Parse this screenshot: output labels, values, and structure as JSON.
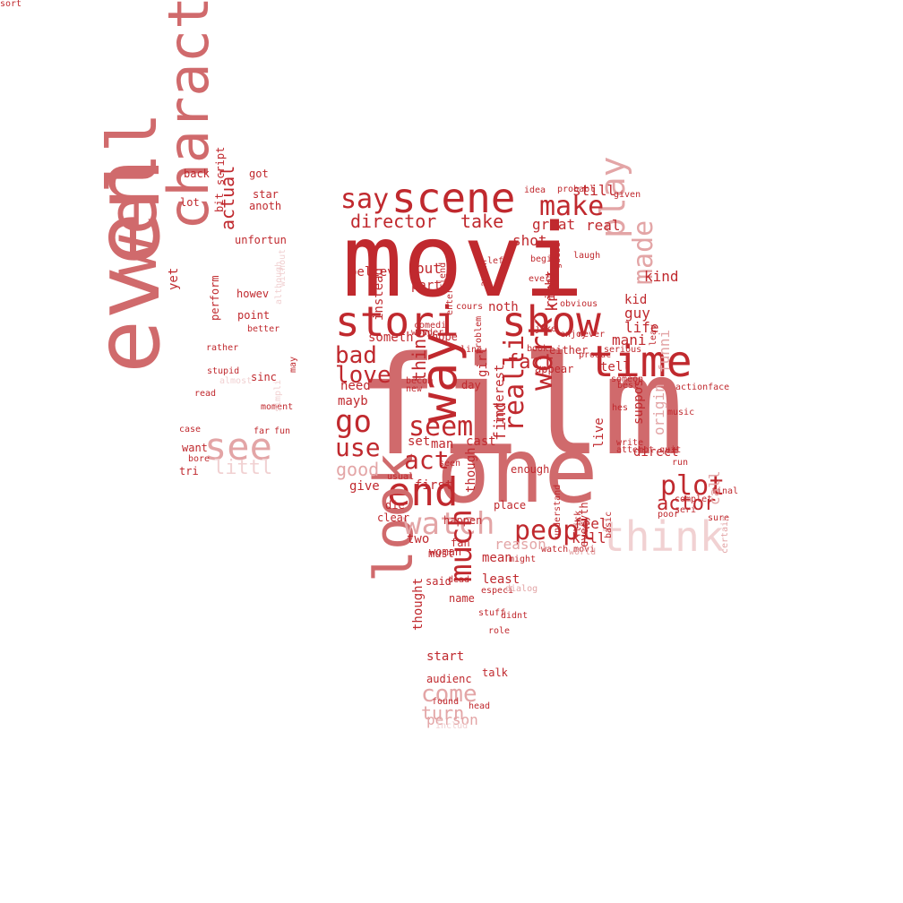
{
  "palette": {
    "dark": "#c0292e",
    "mid": "#d06a6c",
    "light": "#e3a5a6",
    "pale": "#f1d1d2"
  },
  "words": [
    {
      "t": "movi",
      "c": "dark"
    },
    {
      "t": "film",
      "c": "mid"
    },
    {
      "t": "one",
      "c": "mid"
    },
    {
      "t": "charact",
      "c": "mid"
    },
    {
      "t": "well",
      "c": "mid"
    },
    {
      "t": "even",
      "c": "mid"
    },
    {
      "t": "stori",
      "c": "dark"
    },
    {
      "t": "show",
      "c": "dark"
    },
    {
      "t": "scene",
      "c": "dark"
    },
    {
      "t": "time",
      "c": "dark"
    },
    {
      "t": "way",
      "c": "dark"
    },
    {
      "t": "end",
      "c": "dark"
    },
    {
      "t": "look",
      "c": "mid"
    },
    {
      "t": "think",
      "c": "pale"
    },
    {
      "t": "see",
      "c": "light"
    },
    {
      "t": "play",
      "c": "light"
    },
    {
      "t": "made",
      "c": "light"
    },
    {
      "t": "work",
      "c": "dark"
    },
    {
      "t": "realli",
      "c": "dark"
    },
    {
      "t": "watch",
      "c": "light"
    },
    {
      "t": "plot",
      "c": "dark"
    },
    {
      "t": "peopl",
      "c": "dark"
    },
    {
      "t": "much",
      "c": "dark"
    },
    {
      "t": "make",
      "c": "dark"
    },
    {
      "t": "say",
      "c": "dark"
    },
    {
      "t": "go",
      "c": "dark"
    },
    {
      "t": "seem",
      "c": "dark"
    },
    {
      "t": "bad",
      "c": "dark"
    },
    {
      "t": "love",
      "c": "dark"
    },
    {
      "t": "act",
      "c": "dark"
    },
    {
      "t": "use",
      "c": "dark"
    },
    {
      "t": "come",
      "c": "light"
    },
    {
      "t": "actor",
      "c": "dark"
    },
    {
      "t": "fact",
      "c": "dark"
    },
    {
      "t": "director",
      "c": "dark"
    },
    {
      "t": "take",
      "c": "dark"
    },
    {
      "t": "know",
      "c": "dark"
    },
    {
      "t": "littl",
      "c": "pale"
    },
    {
      "t": "actual",
      "c": "dark"
    },
    {
      "t": "good",
      "c": "light"
    },
    {
      "t": "turn",
      "c": "light"
    },
    {
      "t": "thing",
      "c": "dark"
    },
    {
      "t": "find",
      "c": "dark"
    },
    {
      "t": "funni",
      "c": "light"
    },
    {
      "t": "origin",
      "c": "light"
    },
    {
      "t": "right",
      "c": "dark"
    },
    {
      "t": "great",
      "c": "dark"
    },
    {
      "t": "still",
      "c": "dark"
    },
    {
      "t": "shot",
      "c": "dark"
    },
    {
      "t": "call",
      "c": "light"
    },
    {
      "t": "kind",
      "c": "dark"
    },
    {
      "t": "believ",
      "c": "dark"
    },
    {
      "t": "part",
      "c": "dark"
    },
    {
      "t": "put",
      "c": "dark"
    },
    {
      "t": "noth",
      "c": "dark"
    },
    {
      "t": "real",
      "c": "dark"
    },
    {
      "t": "guy",
      "c": "dark"
    },
    {
      "t": "life",
      "c": "dark"
    },
    {
      "t": "mani",
      "c": "dark"
    },
    {
      "t": "kid",
      "c": "dark"
    },
    {
      "t": "instead",
      "c": "dark"
    },
    {
      "t": "interest",
      "c": "dark"
    },
    {
      "t": "someth",
      "c": "dark"
    },
    {
      "t": "need",
      "c": "dark"
    },
    {
      "t": "mayb",
      "c": "dark"
    },
    {
      "t": "man",
      "c": "dark"
    },
    {
      "t": "set",
      "c": "dark"
    },
    {
      "t": "cast",
      "c": "dark"
    },
    {
      "t": "though",
      "c": "dark"
    },
    {
      "t": "give",
      "c": "dark"
    },
    {
      "t": "first",
      "c": "dark"
    },
    {
      "t": "two",
      "c": "dark"
    },
    {
      "t": "mean",
      "c": "dark"
    },
    {
      "t": "least",
      "c": "dark"
    },
    {
      "t": "feel",
      "c": "dark"
    },
    {
      "t": "kill",
      "c": "dark"
    },
    {
      "t": "direct",
      "c": "dark"
    },
    {
      "t": "suppos",
      "c": "dark"
    },
    {
      "t": "live",
      "c": "dark"
    },
    {
      "t": "tell",
      "c": "dark"
    },
    {
      "t": "thought",
      "c": "dark"
    },
    {
      "t": "start",
      "c": "dark"
    },
    {
      "t": "fan",
      "c": "dark"
    },
    {
      "t": "reason",
      "c": "light"
    },
    {
      "t": "said",
      "c": "dark"
    },
    {
      "t": "audienc",
      "c": "dark"
    },
    {
      "t": "person",
      "c": "light"
    },
    {
      "t": "includ",
      "c": "pale"
    },
    {
      "t": "found",
      "c": "dark"
    },
    {
      "t": "head",
      "c": "dark"
    },
    {
      "t": "talk",
      "c": "dark"
    },
    {
      "t": "role",
      "c": "dark"
    },
    {
      "t": "girl",
      "c": "dark"
    },
    {
      "t": "hope",
      "c": "dark"
    },
    {
      "t": "appear",
      "c": "dark"
    },
    {
      "t": "either",
      "c": "dark"
    },
    {
      "t": "enough",
      "c": "dark"
    },
    {
      "t": "happen",
      "c": "dark"
    },
    {
      "t": "lot",
      "c": "dark"
    },
    {
      "t": "anoth",
      "c": "dark"
    },
    {
      "t": "star",
      "c": "dark"
    },
    {
      "t": "script",
      "c": "dark"
    },
    {
      "t": "bit",
      "c": "dark"
    },
    {
      "t": "got",
      "c": "dark"
    },
    {
      "t": "back",
      "c": "dark"
    },
    {
      "t": "unfortun",
      "c": "dark"
    },
    {
      "t": "howev",
      "c": "dark"
    },
    {
      "t": "perform",
      "c": "dark"
    },
    {
      "t": "point",
      "c": "dark"
    },
    {
      "t": "better",
      "c": "dark"
    },
    {
      "t": "sinc",
      "c": "dark"
    },
    {
      "t": "want",
      "c": "dark"
    },
    {
      "t": "tri",
      "c": "dark"
    },
    {
      "t": "bore",
      "c": "dark"
    },
    {
      "t": "yet",
      "c": "dark"
    },
    {
      "t": "rather",
      "c": "dark"
    },
    {
      "t": "stupid",
      "c": "dark"
    },
    {
      "t": "moment",
      "c": "dark"
    },
    {
      "t": "far",
      "c": "dark"
    },
    {
      "t": "read",
      "c": "dark"
    },
    {
      "t": "case",
      "c": "dark"
    },
    {
      "t": "fun",
      "c": "dark"
    },
    {
      "t": "may",
      "c": "dark"
    },
    {
      "t": "although",
      "c": "pale"
    },
    {
      "t": "without",
      "c": "pale"
    },
    {
      "t": "simpli",
      "c": "pale"
    },
    {
      "t": "almost",
      "c": "pale"
    },
    {
      "t": "especi",
      "c": "dark"
    },
    {
      "t": "must",
      "c": "dark"
    },
    {
      "t": "woman",
      "c": "dark"
    },
    {
      "t": "name",
      "c": "dark"
    },
    {
      "t": "clear",
      "c": "dark"
    },
    {
      "t": "die",
      "c": "dark"
    },
    {
      "t": "place",
      "c": "dark"
    },
    {
      "t": "seen",
      "c": "dark"
    },
    {
      "t": "usual",
      "c": "dark"
    },
    {
      "t": "day",
      "c": "dark"
    },
    {
      "t": "becom",
      "c": "dark"
    },
    {
      "t": "new",
      "c": "dark"
    },
    {
      "t": "wonder",
      "c": "dark"
    },
    {
      "t": "comedi",
      "c": "dark"
    },
    {
      "t": "line",
      "c": "dark"
    },
    {
      "t": "book",
      "c": "dark"
    },
    {
      "t": "enjoy",
      "c": "dark"
    },
    {
      "t": "obvious",
      "c": "dark"
    },
    {
      "t": "joke",
      "c": "dark"
    },
    {
      "t": "never",
      "c": "dark"
    },
    {
      "t": "problem",
      "c": "dark"
    },
    {
      "t": "entertain",
      "c": "dark"
    },
    {
      "t": "anyth",
      "c": "dark"
    },
    {
      "t": "friend",
      "c": "dark"
    },
    {
      "t": "cours",
      "c": "dark"
    },
    {
      "t": "everi",
      "c": "dark"
    },
    {
      "t": "begin",
      "c": "dark"
    },
    {
      "t": "left",
      "c": "dark"
    },
    {
      "t": "guess",
      "c": "dark"
    },
    {
      "t": "idea",
      "c": "dark"
    },
    {
      "t": "probabl",
      "c": "dark"
    },
    {
      "t": "laugh",
      "c": "dark"
    },
    {
      "t": "given",
      "c": "dark"
    },
    {
      "t": "leav",
      "c": "dark"
    },
    {
      "t": "someon",
      "c": "dark"
    },
    {
      "t": "best",
      "c": "dark"
    },
    {
      "t": "hes",
      "c": "dark"
    },
    {
      "t": "actionface",
      "c": "dark"
    },
    {
      "t": "music",
      "c": "dark"
    },
    {
      "t": "run",
      "c": "dark"
    },
    {
      "t": "seri",
      "c": "dark"
    },
    {
      "t": "final",
      "c": "dark"
    },
    {
      "t": "sure",
      "c": "dark"
    },
    {
      "t": "poor",
      "c": "dark"
    },
    {
      "t": "complet",
      "c": "dark"
    },
    {
      "t": "basic",
      "c": "dark"
    },
    {
      "t": "flick",
      "c": "dark"
    },
    {
      "t": "everyth",
      "c": "dark"
    },
    {
      "t": "watch movi",
      "c": "dark"
    },
    {
      "t": "world",
      "c": "light"
    },
    {
      "t": "certain",
      "c": "light"
    },
    {
      "t": "dialog",
      "c": "light"
    },
    {
      "t": "might",
      "c": "dark"
    },
    {
      "t": "stuff",
      "c": "dark"
    },
    {
      "t": "didnt",
      "c": "dark"
    },
    {
      "t": "dead",
      "c": "dark"
    },
    {
      "t": "understand",
      "c": "dark"
    },
    {
      "t": "attempt quit",
      "c": "dark"
    },
    {
      "t": "write",
      "c": "dark"
    },
    {
      "t": "serious",
      "c": "dark"
    },
    {
      "t": "produc",
      "c": "dark"
    },
    {
      "t": "sort",
      "c": "dark"
    }
  ]
}
